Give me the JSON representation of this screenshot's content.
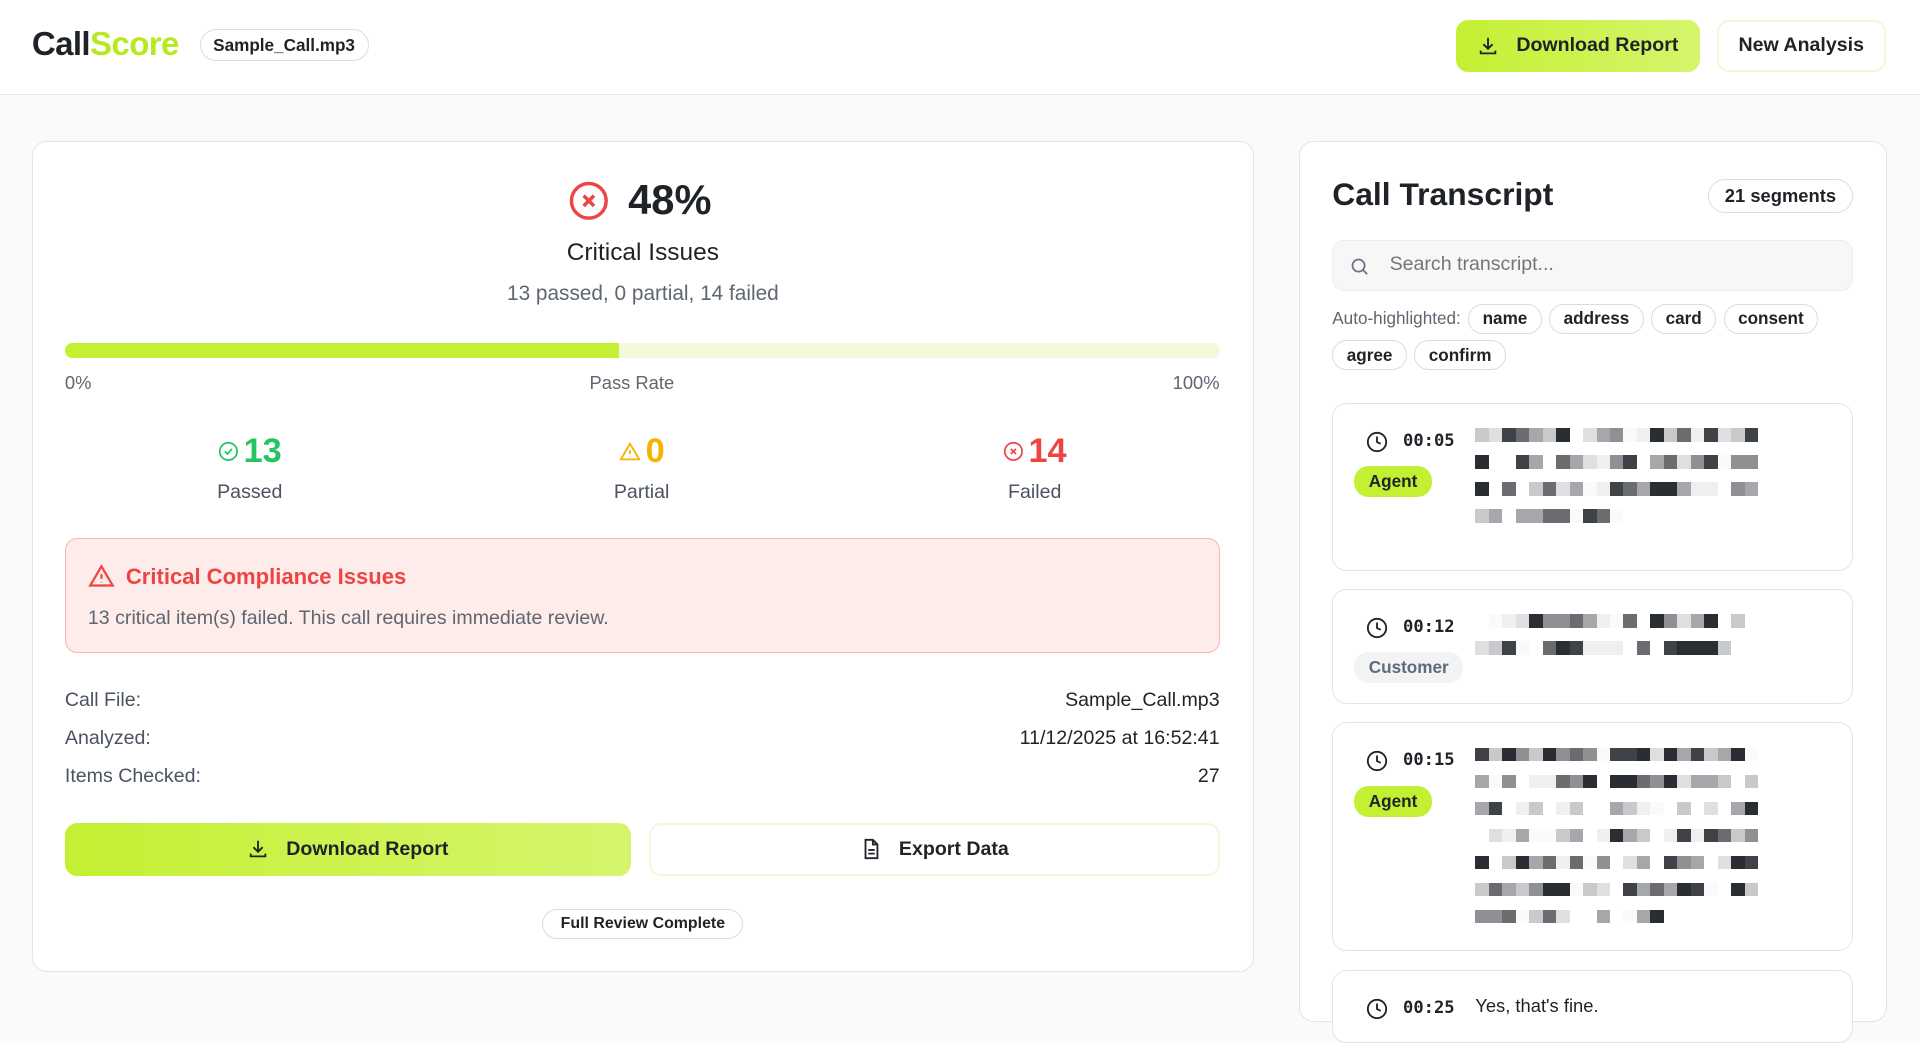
{
  "header": {
    "logo_part1": "Call",
    "logo_part2": "Score",
    "file_chip": "Sample_Call.mp3",
    "download_label": "Download Report",
    "new_analysis_label": "New Analysis"
  },
  "summary": {
    "score": "48%",
    "status": "Critical Issues",
    "breakdown": "13 passed, 0 partial, 14 failed",
    "pass_rate": 0.48,
    "bar_min": "0%",
    "bar_label": "Pass Rate",
    "bar_max": "100%",
    "stats": [
      {
        "value": "13",
        "label": "Passed",
        "color": "#22c55e"
      },
      {
        "value": "0",
        "label": "Partial",
        "color": "#f5b400"
      },
      {
        "value": "14",
        "label": "Failed",
        "color": "#ef4444"
      }
    ]
  },
  "alert": {
    "title": "Critical Compliance Issues",
    "message": "13 critical item(s) failed. This call requires immediate review."
  },
  "details": [
    {
      "key": "Call File:",
      "value": "Sample_Call.mp3"
    },
    {
      "key": "Analyzed:",
      "value": "11/12/2025 at 16:52:41"
    },
    {
      "key": "Items Checked:",
      "value": "27"
    }
  ],
  "actions": {
    "download": "Download Report",
    "export": "Export Data",
    "review_chip": "Full Review Complete"
  },
  "transcript": {
    "title": "Call Transcript",
    "segments": "21 segments",
    "search_placeholder": "Search transcript...",
    "auto_label": "Auto-highlighted:",
    "keywords": [
      "name",
      "address",
      "card",
      "consent",
      "agree",
      "confirm"
    ],
    "items": [
      {
        "time": "00:05",
        "role": "Agent"
      },
      {
        "time": "00:12",
        "role": "Customer"
      },
      {
        "time": "00:15",
        "role": "Agent"
      },
      {
        "time": "00:25",
        "role": "",
        "text": "Yes, that's fine."
      }
    ]
  },
  "colors": {
    "accent": "#c3f032",
    "danger": "#ef4444",
    "success": "#22c55e",
    "warning": "#f5b400"
  }
}
